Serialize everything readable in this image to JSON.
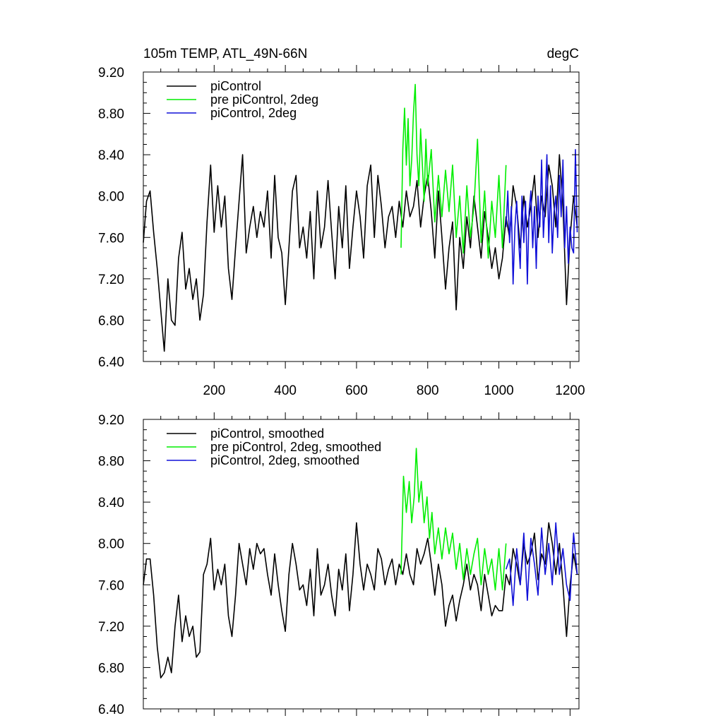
{
  "figure": {
    "title_left": "105m TEMP, ATL_49N-66N",
    "title_right": "degC"
  },
  "colors": {
    "piControl": "#000000",
    "pre_piControl_2deg": "#00ee00",
    "piControl_2deg": "#1010d8",
    "axis": "#000000"
  },
  "chart_data": [
    {
      "type": "line",
      "id": "raw",
      "title": "105m TEMP, ATL_49N-66N",
      "units": "degC",
      "xlim": [
        1,
        1225
      ],
      "ylim": [
        6.4,
        9.2
      ],
      "y_ticks": [
        6.4,
        6.8,
        7.2,
        7.6,
        8.0,
        8.4,
        8.8,
        9.2
      ],
      "y_tick_labels": [
        "6.40",
        "6.80",
        "7.20",
        "7.60",
        "8.00",
        "8.40",
        "8.80",
        "9.20"
      ],
      "x_ticks": [
        200,
        400,
        600,
        800,
        1000,
        1200
      ],
      "x_tick_labels": [
        "200",
        "400",
        "600",
        "800",
        "1000",
        "1200"
      ],
      "legend": [
        "piControl",
        "pre piControl, 2deg",
        "piControl, 2deg"
      ],
      "legend_position": "top-left",
      "series": [
        {
          "name": "piControl",
          "color_key": "piControl",
          "x": [
            1,
            10,
            20,
            30,
            40,
            50,
            60,
            70,
            80,
            90,
            100,
            110,
            120,
            130,
            140,
            150,
            160,
            170,
            180,
            190,
            200,
            210,
            220,
            230,
            240,
            250,
            260,
            270,
            280,
            290,
            300,
            310,
            320,
            330,
            340,
            350,
            360,
            370,
            380,
            390,
            400,
            410,
            420,
            430,
            440,
            450,
            460,
            470,
            480,
            490,
            500,
            510,
            520,
            530,
            540,
            550,
            560,
            570,
            580,
            590,
            600,
            610,
            620,
            630,
            640,
            650,
            660,
            670,
            680,
            690,
            700,
            710,
            720,
            730,
            740,
            750,
            760,
            770,
            780,
            790,
            800,
            810,
            820,
            830,
            840,
            850,
            860,
            870,
            880,
            890,
            900,
            910,
            920,
            930,
            940,
            950,
            960,
            970,
            980,
            990,
            1000,
            1010,
            1020,
            1030,
            1040,
            1050,
            1060,
            1070,
            1080,
            1090,
            1100,
            1110,
            1120,
            1130,
            1140,
            1150,
            1160,
            1170,
            1180,
            1190,
            1200,
            1210,
            1220
          ],
          "y": [
            7.55,
            7.95,
            8.05,
            7.65,
            7.3,
            6.9,
            6.5,
            7.2,
            6.8,
            6.75,
            7.4,
            7.65,
            7.1,
            7.3,
            7.0,
            7.2,
            6.8,
            7.05,
            7.75,
            8.3,
            7.65,
            8.1,
            7.7,
            8.0,
            7.3,
            7.0,
            7.5,
            7.95,
            8.4,
            7.45,
            7.7,
            7.9,
            7.6,
            7.85,
            7.7,
            8.05,
            7.4,
            8.2,
            7.6,
            7.45,
            6.95,
            7.5,
            8.05,
            8.2,
            7.5,
            7.7,
            7.4,
            7.85,
            7.2,
            8.05,
            7.5,
            7.7,
            8.15,
            7.65,
            7.2,
            7.9,
            7.5,
            8.1,
            7.3,
            7.7,
            8.05,
            7.8,
            7.4,
            8.1,
            8.3,
            7.6,
            8.2,
            7.9,
            7.5,
            7.8,
            7.9,
            7.6,
            7.95,
            7.7,
            8.05,
            7.8,
            7.9,
            8.15,
            7.7,
            8.0,
            8.2,
            7.85,
            7.4,
            8.05,
            7.6,
            7.1,
            7.5,
            7.75,
            6.9,
            7.6,
            7.3,
            7.8,
            7.5,
            8.0,
            7.7,
            7.4,
            7.85,
            7.6,
            7.3,
            7.5,
            7.2,
            7.4,
            7.8,
            7.6,
            8.1,
            7.9,
            7.5,
            8.0,
            7.7,
            7.9,
            8.2,
            7.6,
            8.0,
            7.8,
            8.3,
            8.1,
            7.7,
            8.4,
            7.9,
            6.95,
            7.6,
            8.0,
            7.7
          ]
        },
        {
          "name": "pre piControl, 2deg",
          "color_key": "pre_piControl_2deg",
          "x": [
            725,
            730,
            735,
            740,
            745,
            750,
            755,
            760,
            765,
            770,
            775,
            780,
            785,
            790,
            795,
            800,
            810,
            820,
            830,
            840,
            850,
            860,
            870,
            880,
            890,
            900,
            910,
            920,
            930,
            940,
            950,
            960,
            970,
            980,
            990,
            1000,
            1010,
            1020
          ],
          "y": [
            7.5,
            8.45,
            8.85,
            8.3,
            8.75,
            8.1,
            8.35,
            8.8,
            9.08,
            8.4,
            8.1,
            8.65,
            8.3,
            7.95,
            8.55,
            8.1,
            8.45,
            7.75,
            8.2,
            7.8,
            8.25,
            7.85,
            8.3,
            7.6,
            8.0,
            7.45,
            8.1,
            7.6,
            7.9,
            8.55,
            7.55,
            8.05,
            7.4,
            7.95,
            7.6,
            8.2,
            7.5,
            8.3
          ]
        },
        {
          "name": "piControl, 2deg",
          "color_key": "piControl_2deg",
          "x": [
            1020,
            1025,
            1030,
            1035,
            1040,
            1045,
            1050,
            1055,
            1060,
            1065,
            1070,
            1075,
            1080,
            1085,
            1090,
            1095,
            1100,
            1105,
            1110,
            1115,
            1120,
            1125,
            1130,
            1135,
            1140,
            1145,
            1150,
            1155,
            1160,
            1165,
            1170,
            1175,
            1180,
            1185,
            1190,
            1195,
            1200,
            1205,
            1210,
            1215,
            1220
          ],
          "y": [
            7.7,
            8.05,
            7.55,
            7.9,
            7.15,
            7.7,
            7.95,
            7.6,
            7.3,
            8.0,
            7.55,
            7.95,
            7.15,
            7.85,
            8.05,
            7.5,
            7.9,
            7.3,
            8.0,
            7.7,
            8.35,
            7.6,
            7.95,
            8.4,
            7.55,
            8.1,
            7.45,
            7.85,
            8.0,
            7.6,
            8.2,
            7.8,
            8.35,
            7.5,
            7.9,
            7.35,
            7.7,
            7.5,
            7.45,
            8.45,
            7.65
          ]
        }
      ]
    },
    {
      "type": "line",
      "id": "smoothed",
      "title": "",
      "xlim": [
        1,
        1225
      ],
      "ylim": [
        6.4,
        9.2
      ],
      "y_ticks": [
        6.4,
        6.8,
        7.2,
        7.6,
        8.0,
        8.4,
        8.8,
        9.2
      ],
      "y_tick_labels": [
        "6.40",
        "6.80",
        "7.20",
        "7.60",
        "8.00",
        "8.40",
        "8.80",
        "9.20"
      ],
      "x_ticks": [
        200,
        400,
        600,
        800,
        1000,
        1200
      ],
      "x_tick_labels": [],
      "legend": [
        "piControl, smoothed",
        "pre piControl, 2deg, smoothed",
        "piControl, 2deg, smoothed"
      ],
      "legend_position": "top-left",
      "series": [
        {
          "name": "piControl, smoothed",
          "color_key": "piControl",
          "x": [
            1,
            10,
            20,
            30,
            40,
            50,
            60,
            70,
            80,
            90,
            100,
            110,
            120,
            130,
            140,
            150,
            160,
            170,
            180,
            190,
            200,
            210,
            220,
            230,
            240,
            250,
            260,
            270,
            280,
            290,
            300,
            310,
            320,
            330,
            340,
            350,
            360,
            370,
            380,
            390,
            400,
            410,
            420,
            430,
            440,
            450,
            460,
            470,
            480,
            490,
            500,
            510,
            520,
            530,
            540,
            550,
            560,
            570,
            580,
            590,
            600,
            610,
            620,
            630,
            640,
            650,
            660,
            670,
            680,
            690,
            700,
            710,
            720,
            730,
            740,
            750,
            760,
            770,
            780,
            790,
            800,
            810,
            820,
            830,
            840,
            850,
            860,
            870,
            880,
            890,
            900,
            910,
            920,
            930,
            940,
            950,
            960,
            970,
            980,
            990,
            1000,
            1010,
            1020,
            1030,
            1040,
            1050,
            1060,
            1070,
            1080,
            1090,
            1100,
            1110,
            1120,
            1130,
            1140,
            1150,
            1160,
            1170,
            1180,
            1190,
            1200,
            1210,
            1220
          ],
          "y": [
            7.6,
            7.85,
            7.85,
            7.5,
            7.0,
            6.7,
            6.75,
            6.9,
            6.75,
            7.2,
            7.5,
            7.05,
            7.3,
            7.1,
            7.2,
            6.9,
            6.95,
            7.7,
            7.8,
            8.05,
            7.55,
            7.75,
            7.6,
            7.8,
            7.3,
            7.1,
            7.5,
            8.0,
            7.8,
            7.6,
            7.95,
            7.75,
            8.0,
            7.9,
            7.95,
            7.7,
            7.5,
            7.9,
            7.6,
            7.35,
            7.15,
            7.7,
            8.0,
            7.8,
            7.55,
            7.6,
            7.4,
            7.75,
            7.3,
            7.95,
            7.5,
            7.6,
            7.8,
            7.5,
            7.3,
            7.75,
            7.55,
            7.9,
            7.35,
            7.7,
            8.2,
            7.8,
            7.55,
            7.8,
            7.7,
            7.55,
            7.95,
            7.85,
            7.6,
            7.75,
            7.85,
            7.6,
            7.8,
            7.7,
            7.9,
            7.7,
            7.6,
            7.95,
            7.8,
            7.9,
            8.05,
            7.8,
            7.5,
            7.8,
            7.6,
            7.2,
            7.4,
            7.5,
            7.25,
            7.45,
            7.6,
            7.8,
            7.55,
            7.7,
            7.6,
            7.35,
            7.7,
            7.5,
            7.3,
            7.4,
            7.35,
            7.35,
            7.7,
            7.6,
            7.95,
            7.8,
            7.6,
            8.0,
            7.8,
            7.9,
            8.1,
            7.65,
            7.9,
            7.8,
            8.2,
            8.0,
            7.7,
            8.0,
            7.6,
            7.1,
            7.6,
            7.9,
            7.7
          ]
        },
        {
          "name": "pre piControl, 2deg, smoothed",
          "color_key": "pre_piControl_2deg",
          "x": [
            725,
            732,
            740,
            748,
            755,
            762,
            768,
            775,
            782,
            790,
            798,
            805,
            812,
            820,
            830,
            840,
            850,
            860,
            870,
            880,
            890,
            900,
            910,
            920,
            930,
            940,
            950,
            960,
            970,
            980,
            990,
            1000,
            1010,
            1020
          ],
          "y": [
            7.7,
            8.65,
            8.3,
            8.6,
            8.2,
            8.45,
            8.92,
            8.4,
            8.6,
            8.2,
            8.45,
            8.05,
            8.3,
            7.9,
            8.15,
            7.85,
            8.15,
            7.9,
            8.1,
            7.75,
            8.0,
            7.65,
            7.95,
            7.7,
            7.9,
            8.05,
            7.6,
            7.95,
            7.7,
            7.85,
            7.55,
            7.95,
            7.55,
            8.0
          ]
        },
        {
          "name": "piControl, 2deg, smoothed",
          "color_key": "piControl_2deg",
          "x": [
            1020,
            1030,
            1040,
            1050,
            1060,
            1070,
            1080,
            1090,
            1100,
            1110,
            1120,
            1130,
            1140,
            1150,
            1160,
            1170,
            1180,
            1190,
            1200,
            1210,
            1220
          ],
          "y": [
            7.75,
            7.85,
            7.4,
            7.95,
            7.6,
            8.1,
            7.45,
            8.05,
            7.8,
            7.5,
            8.15,
            7.7,
            8.0,
            7.6,
            8.2,
            7.7,
            7.95,
            7.6,
            7.45,
            8.1,
            7.7
          ]
        }
      ]
    }
  ]
}
